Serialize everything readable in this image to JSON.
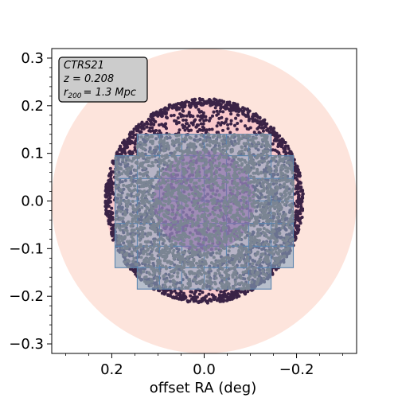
{
  "chart_data": {
    "type": "scatter",
    "title": "",
    "xlabel": "offset RA (deg)",
    "ylabel": "",
    "xlim": [
      0.33,
      -0.33
    ],
    "ylim": [
      -0.32,
      0.32
    ],
    "x_reversed": true,
    "x_ticks": [
      0.2,
      0.0,
      -0.2
    ],
    "x_tick_labels": [
      "0.2",
      "0.0",
      "−0.2"
    ],
    "y_ticks": [
      0.3,
      0.2,
      0.1,
      0.0,
      -0.1,
      -0.2,
      -0.3
    ],
    "y_tick_labels": [
      "0.3",
      "0.2",
      "0.1",
      "0.0",
      "−0.1",
      "−0.2",
      "−0.3"
    ],
    "grid": false,
    "legend": null,
    "annotation": {
      "lines": [
        "CTRS21",
        "z = 0.208",
        "= 1.3 Mpc"
      ],
      "r_symbol": "r",
      "r_subscript": "200",
      "placement": "top-left"
    },
    "regions": {
      "outer_circle": {
        "center": [
          0.0,
          0.0
        ],
        "radius": 0.33,
        "color": "#fde4dc"
      },
      "r200_circle": {
        "center": [
          0.0,
          0.0
        ],
        "radius": 0.215,
        "color": "#f9c9cc"
      },
      "core_circle": {
        "center": [
          0.0,
          0.0
        ],
        "radius": 0.11,
        "color": "#8e6bab"
      },
      "tile_grid": {
        "color": "#8aa6c1",
        "edge_color": "#5b85ae",
        "rows": [
          {
            "y": [
              0.095,
              0.14
            ],
            "x": [
              0.145,
              -0.145
            ],
            "cells": 6
          },
          {
            "y": [
              0.047,
              0.095
            ],
            "x": [
              0.193,
              -0.193
            ],
            "cells": 8
          },
          {
            "y": [
              0.0,
              0.047
            ],
            "x": [
              0.193,
              -0.193
            ],
            "cells": 8
          },
          {
            "y": [
              -0.047,
              0.0
            ],
            "x": [
              0.193,
              -0.193
            ],
            "cells": 8
          },
          {
            "y": [
              -0.095,
              -0.047
            ],
            "x": [
              0.193,
              -0.193
            ],
            "cells": 8
          },
          {
            "y": [
              -0.14,
              -0.095
            ],
            "x": [
              0.193,
              -0.193
            ],
            "cells": 8
          },
          {
            "y": [
              -0.185,
              -0.14
            ],
            "x": [
              0.145,
              -0.145
            ],
            "cells": 6
          }
        ]
      }
    },
    "series": [
      {
        "color": "#3a2346",
        "marker_radius": 0.0035,
        "region": "full_r200_disk",
        "approx_points": 2600
      },
      {
        "color": "#7b8593",
        "marker_radius": 0.0035,
        "region": "tile_grid",
        "approx_points": 2000
      }
    ]
  }
}
